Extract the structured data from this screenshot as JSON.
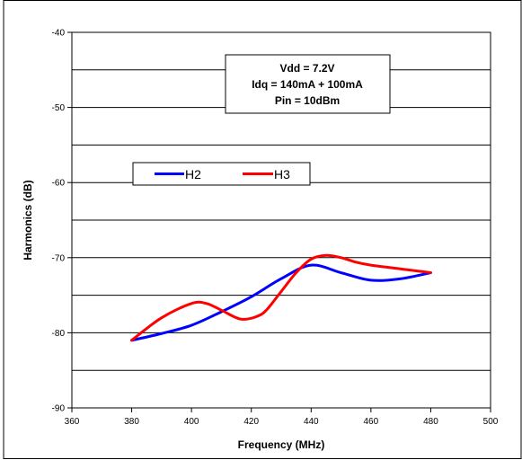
{
  "chart_data": {
    "type": "line",
    "xlabel": "Frequency (MHz)",
    "ylabel": "Harmonics (dB)",
    "xlim": [
      360,
      500
    ],
    "ylim": [
      -90,
      -40
    ],
    "x_ticks": [
      "360",
      "380",
      "400",
      "420",
      "440",
      "460",
      "480",
      "500"
    ],
    "y_ticks": [
      "-40",
      "-50",
      "-60",
      "-70",
      "-80",
      "-90"
    ],
    "grid": "horizontal",
    "legend_placement": "upper-left",
    "annotation": [
      "Vdd = 7.2V",
      "Idq = 140mA + 100mA",
      "Pin = 10dBm"
    ],
    "series": [
      {
        "name": "H2",
        "color": "#0000ff",
        "x": [
          380,
          390,
          400,
          410,
          420,
          430,
          440,
          450,
          460,
          470,
          480
        ],
        "y": [
          -81,
          -80.1,
          -79,
          -77.2,
          -75.2,
          -72.8,
          -71.0,
          -72.0,
          -73.0,
          -72.8,
          -72.0
        ]
      },
      {
        "name": "H3",
        "color": "#ff0000",
        "x": [
          380,
          390,
          400,
          405,
          410,
          415,
          418,
          422,
          425,
          430,
          435,
          440,
          445,
          450,
          455,
          460,
          470,
          480
        ],
        "y": [
          -81,
          -78,
          -76.1,
          -76.1,
          -77.0,
          -78.0,
          -78.2,
          -77.8,
          -77.0,
          -74.5,
          -72.0,
          -70.2,
          -69.7,
          -70.0,
          -70.6,
          -71.0,
          -71.5,
          -72.0
        ]
      }
    ]
  }
}
